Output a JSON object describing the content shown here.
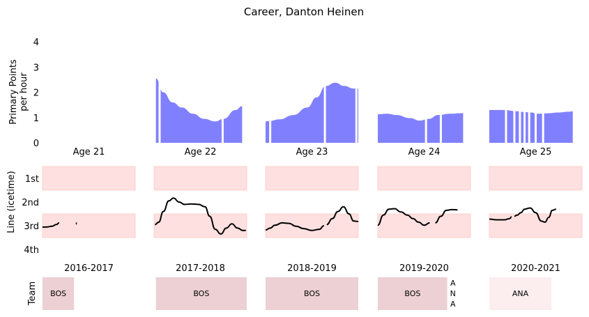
{
  "title": "Career, Danton Heinen",
  "chart_data": {
    "type": "area",
    "title": "Career, Danton Heinen",
    "points_panel": {
      "ylabel": "Primary Points per hour",
      "ylabel_lines": [
        "Primary Points",
        "per hour"
      ],
      "ylim": [
        0,
        4
      ],
      "yticks": [
        "0",
        "1",
        "2",
        "3",
        "4"
      ],
      "color": "#8080ff"
    },
    "line_panel": {
      "ylabel": "Line (icetime)",
      "yticks": [
        "1st",
        "2nd",
        "3rd",
        "4th"
      ],
      "band_color": "#ffe0e0",
      "band_rows": [
        "1st",
        "3rd"
      ]
    },
    "team_panel": {
      "ylabel": "Team"
    },
    "seasons": [
      {
        "age": "Age 21",
        "season": "2016-2017",
        "points": [],
        "gaps": [],
        "line": [
          [
            0.0,
            3.06
          ],
          [
            0.05,
            3.05
          ],
          [
            0.1,
            3.02
          ],
          [
            0.15,
            2.95
          ],
          [
            0.18,
            2.88
          ],
          [
            null,
            null
          ],
          [
            0.36,
            2.93
          ],
          [
            0.37,
            2.88
          ]
        ],
        "teams": [
          {
            "label": "BOS",
            "from": 0.0,
            "to": 0.34,
            "color": "#ecd0d3",
            "vertical": false
          }
        ]
      },
      {
        "age": "Age 22",
        "season": "2017-2018",
        "points": [
          [
            0.02,
            2.55
          ],
          [
            0.1,
            2.0
          ],
          [
            0.2,
            1.6
          ],
          [
            0.3,
            1.4
          ],
          [
            0.42,
            1.15
          ],
          [
            0.54,
            0.95
          ],
          [
            0.66,
            0.85
          ],
          [
            0.75,
            0.95
          ],
          [
            0.88,
            1.3
          ],
          [
            0.95,
            1.45
          ]
        ],
        "gaps": [
          0.06,
          0.74
        ],
        "line": [
          [
            0.01,
            2.95
          ],
          [
            0.05,
            2.85
          ],
          [
            0.1,
            2.4
          ],
          [
            0.16,
            1.95
          ],
          [
            0.21,
            1.83
          ],
          [
            0.27,
            2.0
          ],
          [
            0.33,
            2.1
          ],
          [
            0.4,
            2.08
          ],
          [
            0.48,
            2.1
          ],
          [
            0.55,
            2.2
          ],
          [
            0.6,
            2.6
          ],
          [
            0.66,
            3.15
          ],
          [
            0.72,
            3.35
          ],
          [
            0.78,
            3.1
          ],
          [
            0.84,
            2.92
          ],
          [
            0.9,
            3.1
          ],
          [
            0.96,
            3.2
          ],
          [
            0.99,
            3.2
          ]
        ],
        "teams": [
          {
            "label": "BOS",
            "from": 0.02,
            "to": 1.0,
            "color": "#ecd0d3",
            "vertical": false
          }
        ]
      },
      {
        "age": "Age 23",
        "season": "2018-2019",
        "points": [
          [
            0.0,
            0.85
          ],
          [
            0.05,
            0.87
          ],
          [
            0.15,
            0.93
          ],
          [
            0.3,
            1.1
          ],
          [
            0.45,
            1.4
          ],
          [
            0.55,
            1.8
          ],
          [
            0.65,
            2.25
          ],
          [
            0.75,
            2.38
          ],
          [
            0.85,
            2.25
          ],
          [
            0.95,
            2.15
          ],
          [
            1.0,
            2.15
          ]
        ],
        "gaps": [
          0.05,
          0.64,
          0.98
        ],
        "line": [
          [
            0.0,
            3.18
          ],
          [
            0.05,
            3.1
          ],
          [
            0.1,
            2.98
          ],
          [
            0.18,
            2.88
          ],
          [
            0.25,
            2.9
          ],
          [
            0.33,
            3.02
          ],
          [
            0.41,
            3.12
          ],
          [
            0.5,
            3.2
          ],
          [
            0.58,
            3.15
          ],
          [
            0.63,
            3.0
          ],
          [
            null,
            null
          ],
          [
            0.66,
            2.95
          ],
          [
            0.72,
            2.7
          ],
          [
            0.78,
            2.4
          ],
          [
            0.84,
            2.2
          ],
          [
            0.9,
            2.5
          ],
          [
            0.95,
            2.8
          ],
          [
            1.0,
            2.82
          ]
        ],
        "teams": [
          {
            "label": "BOS",
            "from": 0.0,
            "to": 1.0,
            "color": "#ecd0d3",
            "vertical": false
          }
        ]
      },
      {
        "age": "Age 24",
        "season": "2019-2020",
        "points": [
          [
            0.0,
            1.13
          ],
          [
            0.1,
            1.15
          ],
          [
            0.2,
            1.1
          ],
          [
            0.35,
            0.98
          ],
          [
            0.45,
            0.88
          ],
          [
            0.55,
            0.95
          ],
          [
            0.65,
            1.1
          ],
          [
            0.78,
            1.15
          ],
          [
            0.88,
            1.17
          ],
          [
            0.92,
            1.18
          ]
        ],
        "gaps": [
          0.52,
          0.68
        ],
        "line": [
          [
            0.0,
            2.98
          ],
          [
            0.06,
            2.55
          ],
          [
            0.12,
            2.3
          ],
          [
            0.18,
            2.28
          ],
          [
            0.25,
            2.42
          ],
          [
            0.32,
            2.55
          ],
          [
            0.38,
            2.7
          ],
          [
            0.44,
            2.85
          ],
          [
            0.5,
            2.98
          ],
          [
            0.56,
            2.88
          ],
          [
            null,
            null
          ],
          [
            0.62,
            2.88
          ],
          [
            0.68,
            2.6
          ],
          [
            0.74,
            2.35
          ],
          [
            0.8,
            2.32
          ],
          [
            0.86,
            2.33
          ]
        ],
        "teams": [
          {
            "label": "BOS",
            "from": 0.0,
            "to": 0.75,
            "color": "#ecd0d3",
            "vertical": false
          },
          {
            "label": "ANA",
            "from": 0.75,
            "to": 0.86,
            "color": "#ffffff",
            "vertical": true
          }
        ]
      },
      {
        "age": "Age 25",
        "season": "2020-2021",
        "points": [
          [
            0.0,
            1.3
          ],
          [
            0.15,
            1.3
          ],
          [
            0.3,
            1.25
          ],
          [
            0.38,
            1.22
          ],
          [
            0.45,
            1.2
          ],
          [
            0.52,
            1.15
          ],
          [
            0.62,
            1.17
          ],
          [
            0.75,
            1.2
          ],
          [
            0.85,
            1.23
          ],
          [
            0.9,
            1.25
          ]
        ],
        "gaps": [
          0.18,
          0.27,
          0.33,
          0.38,
          0.43,
          0.5,
          0.58
        ],
        "line": [
          [
            0.0,
            2.72
          ],
          [
            0.08,
            2.75
          ],
          [
            0.16,
            2.75
          ],
          [
            0.22,
            2.7
          ],
          [
            0.24,
            2.62
          ],
          [
            null,
            null
          ],
          [
            0.27,
            2.6
          ],
          [
            0.3,
            2.55
          ],
          [
            0.34,
            2.45
          ],
          [
            0.38,
            2.3
          ],
          [
            0.44,
            2.25
          ],
          [
            0.5,
            2.45
          ],
          [
            0.56,
            2.8
          ],
          [
            0.6,
            2.85
          ],
          [
            0.64,
            2.65
          ],
          [
            0.68,
            2.35
          ],
          [
            0.72,
            2.3
          ]
        ],
        "teams": [
          {
            "label": "ANA",
            "from": 0.0,
            "to": 0.67,
            "color": "#fcedef",
            "vertical": false
          }
        ]
      }
    ]
  }
}
